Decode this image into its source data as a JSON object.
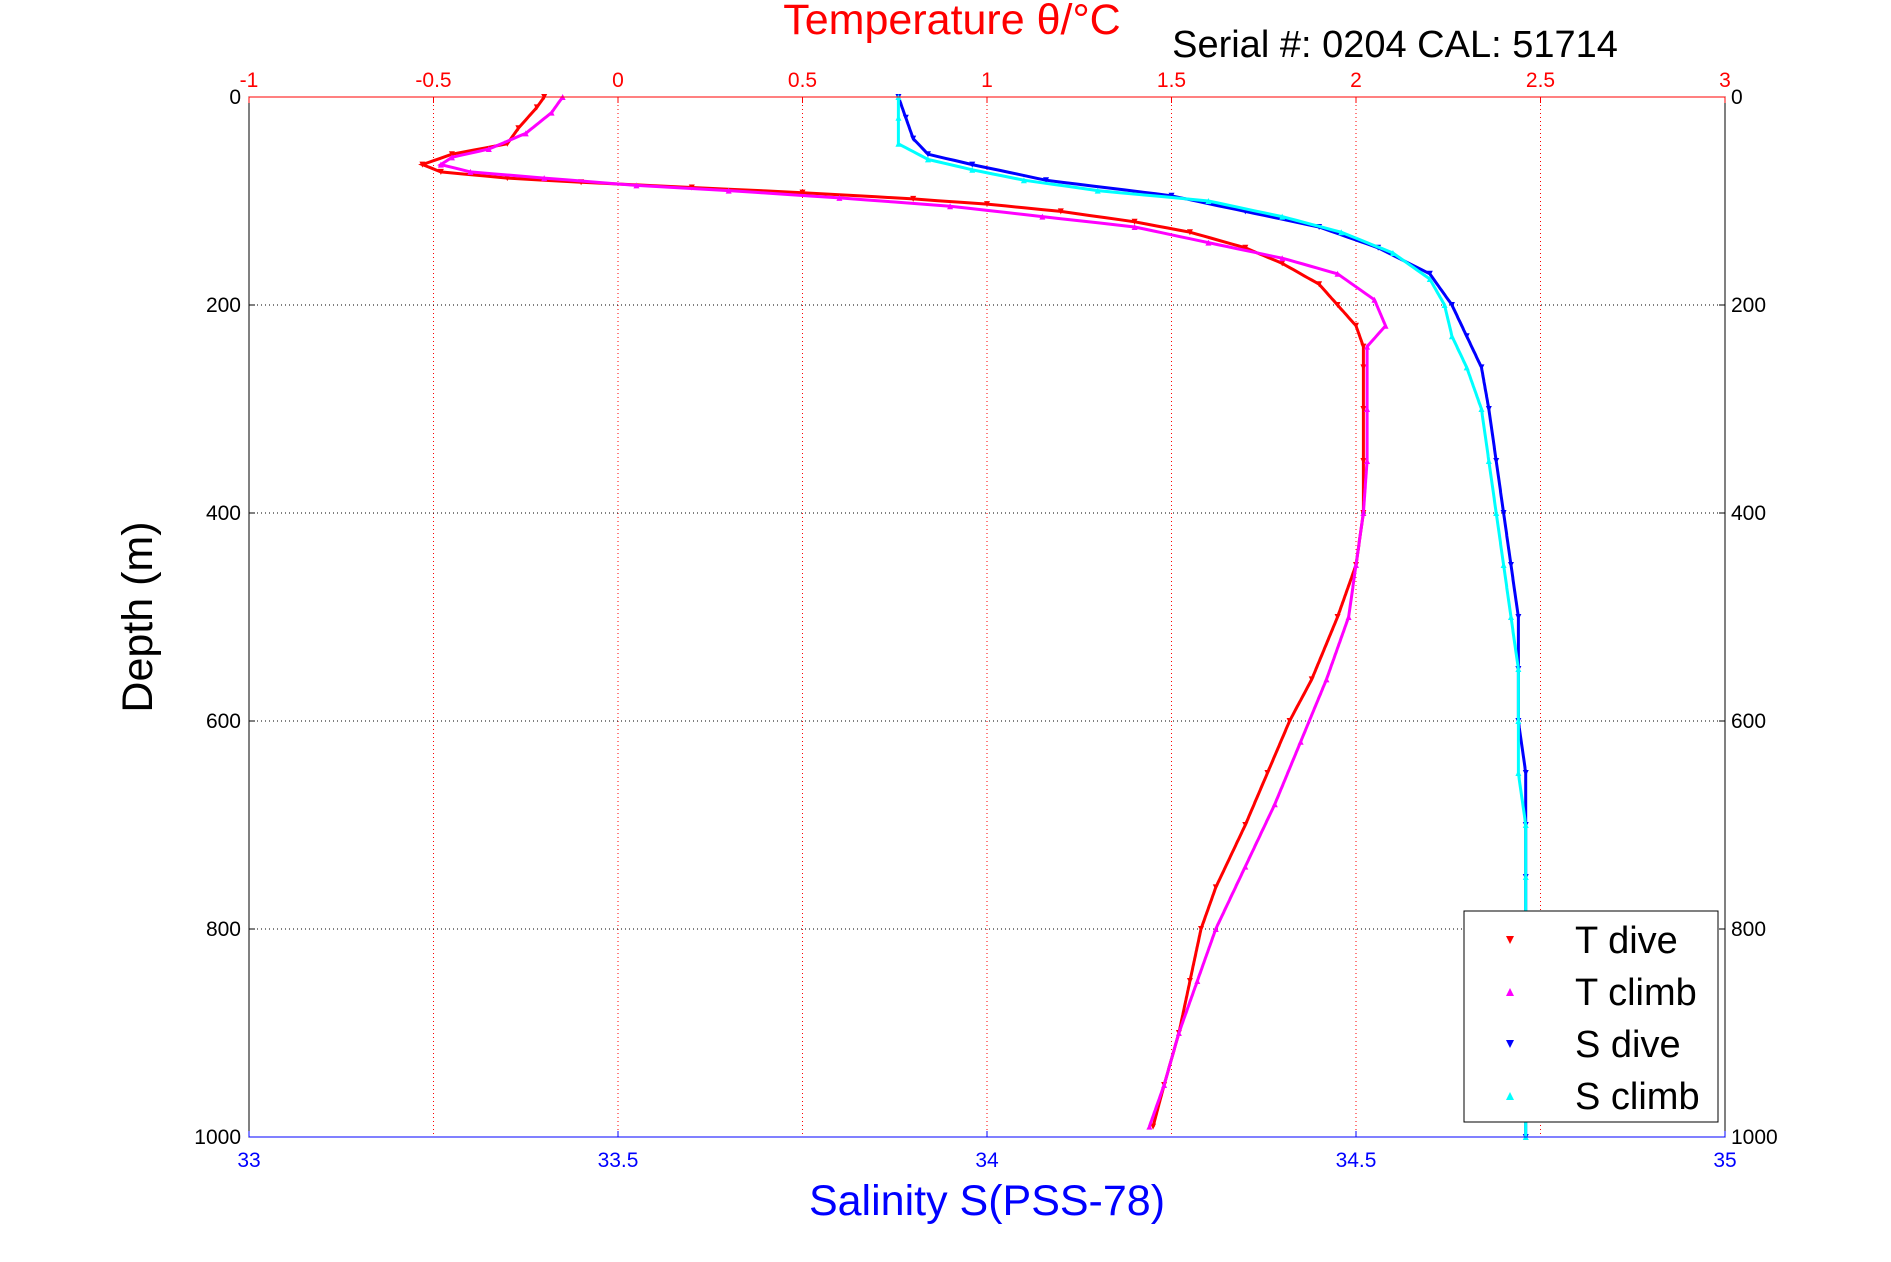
{
  "chart_data": {
    "type": "scatter",
    "serial_label": "Serial #: 0204   CAL: 51714",
    "top_axis": {
      "label": "Temperature θ/°C",
      "range": [
        -1,
        3
      ],
      "ticks": [
        "-1",
        "-0.5",
        "0",
        "0.5",
        "1",
        "1.5",
        "2",
        "2.5",
        "3"
      ],
      "tick_values": [
        -1,
        -0.5,
        0,
        0.5,
        1,
        1.5,
        2,
        2.5,
        3
      ],
      "color": "#ff0000"
    },
    "bottom_axis": {
      "label": "Salinity S(PSS-78)",
      "range": [
        33,
        35
      ],
      "ticks": [
        "33",
        "33.5",
        "34",
        "34.5",
        "35"
      ],
      "tick_values": [
        33,
        33.5,
        34,
        34.5,
        35
      ],
      "color": "#0000ff"
    },
    "y_axis": {
      "label": "Depth (m)",
      "range": [
        0,
        1000
      ],
      "reversed": true,
      "ticks": [
        "0",
        "200",
        "400",
        "600",
        "800",
        "1000"
      ],
      "tick_values": [
        0,
        200,
        400,
        600,
        800,
        1000
      ]
    },
    "grid": true,
    "legend_position": "bottom-right",
    "series": [
      {
        "name": "T dive",
        "axis": "top",
        "color": "#ff0000",
        "marker": "triangle-down",
        "points": [
          [
            -0.2,
            0
          ],
          [
            -0.22,
            10
          ],
          [
            -0.27,
            30
          ],
          [
            -0.3,
            45
          ],
          [
            -0.45,
            55
          ],
          [
            -0.53,
            65
          ],
          [
            -0.48,
            72
          ],
          [
            -0.3,
            78
          ],
          [
            -0.1,
            82
          ],
          [
            0.2,
            87
          ],
          [
            0.5,
            92
          ],
          [
            0.8,
            98
          ],
          [
            1.0,
            103
          ],
          [
            1.2,
            110
          ],
          [
            1.4,
            120
          ],
          [
            1.55,
            130
          ],
          [
            1.7,
            145
          ],
          [
            1.8,
            160
          ],
          [
            1.9,
            180
          ],
          [
            1.95,
            200
          ],
          [
            2.0,
            220
          ],
          [
            2.02,
            240
          ],
          [
            2.02,
            260
          ],
          [
            2.02,
            300
          ],
          [
            2.02,
            350
          ],
          [
            2.02,
            400
          ],
          [
            2.0,
            450
          ],
          [
            1.95,
            500
          ],
          [
            1.88,
            560
          ],
          [
            1.82,
            600
          ],
          [
            1.76,
            650
          ],
          [
            1.7,
            700
          ],
          [
            1.62,
            760
          ],
          [
            1.58,
            800
          ],
          [
            1.55,
            850
          ],
          [
            1.52,
            900
          ],
          [
            1.48,
            950
          ],
          [
            1.45,
            990
          ]
        ]
      },
      {
        "name": "T climb",
        "axis": "top",
        "color": "#ff00ff",
        "marker": "triangle-up",
        "points": [
          [
            -0.15,
            0
          ],
          [
            -0.18,
            15
          ],
          [
            -0.25,
            35
          ],
          [
            -0.35,
            50
          ],
          [
            -0.45,
            58
          ],
          [
            -0.48,
            65
          ],
          [
            -0.4,
            72
          ],
          [
            -0.2,
            78
          ],
          [
            0.05,
            85
          ],
          [
            0.3,
            90
          ],
          [
            0.6,
            97
          ],
          [
            0.9,
            105
          ],
          [
            1.15,
            115
          ],
          [
            1.4,
            125
          ],
          [
            1.6,
            140
          ],
          [
            1.8,
            155
          ],
          [
            1.95,
            170
          ],
          [
            2.05,
            195
          ],
          [
            2.08,
            220
          ],
          [
            2.03,
            240
          ],
          [
            2.03,
            300
          ],
          [
            2.03,
            350
          ],
          [
            2.02,
            400
          ],
          [
            2.0,
            450
          ],
          [
            1.98,
            500
          ],
          [
            1.92,
            560
          ],
          [
            1.85,
            620
          ],
          [
            1.78,
            680
          ],
          [
            1.7,
            740
          ],
          [
            1.62,
            800
          ],
          [
            1.57,
            850
          ],
          [
            1.52,
            900
          ],
          [
            1.48,
            950
          ],
          [
            1.44,
            990
          ]
        ]
      },
      {
        "name": "S dive",
        "axis": "bottom",
        "color": "#0000ff",
        "marker": "triangle-down",
        "points": [
          [
            33.88,
            0
          ],
          [
            33.89,
            20
          ],
          [
            33.9,
            40
          ],
          [
            33.92,
            55
          ],
          [
            33.98,
            65
          ],
          [
            34.08,
            80
          ],
          [
            34.25,
            95
          ],
          [
            34.35,
            110
          ],
          [
            34.45,
            125
          ],
          [
            34.53,
            145
          ],
          [
            34.6,
            170
          ],
          [
            34.63,
            200
          ],
          [
            34.65,
            230
          ],
          [
            34.67,
            260
          ],
          [
            34.68,
            300
          ],
          [
            34.69,
            350
          ],
          [
            34.7,
            400
          ],
          [
            34.71,
            450
          ],
          [
            34.72,
            500
          ],
          [
            34.72,
            550
          ],
          [
            34.72,
            600
          ],
          [
            34.73,
            650
          ],
          [
            34.73,
            700
          ],
          [
            34.73,
            750
          ],
          [
            34.73,
            800
          ],
          [
            34.73,
            900
          ],
          [
            34.73,
            1000
          ]
        ]
      },
      {
        "name": "S climb",
        "axis": "bottom",
        "color": "#00ffff",
        "marker": "triangle-up",
        "points": [
          [
            33.88,
            0
          ],
          [
            33.88,
            20
          ],
          [
            33.88,
            45
          ],
          [
            33.92,
            60
          ],
          [
            33.98,
            70
          ],
          [
            34.05,
            80
          ],
          [
            34.15,
            90
          ],
          [
            34.3,
            100
          ],
          [
            34.4,
            115
          ],
          [
            34.48,
            130
          ],
          [
            34.55,
            150
          ],
          [
            34.6,
            175
          ],
          [
            34.62,
            200
          ],
          [
            34.63,
            230
          ],
          [
            34.65,
            260
          ],
          [
            34.67,
            300
          ],
          [
            34.68,
            350
          ],
          [
            34.69,
            400
          ],
          [
            34.7,
            450
          ],
          [
            34.71,
            500
          ],
          [
            34.72,
            550
          ],
          [
            34.72,
            600
          ],
          [
            34.72,
            650
          ],
          [
            34.73,
            700
          ],
          [
            34.73,
            750
          ],
          [
            34.73,
            800
          ],
          [
            34.73,
            900
          ],
          [
            34.73,
            1000
          ]
        ]
      }
    ]
  }
}
